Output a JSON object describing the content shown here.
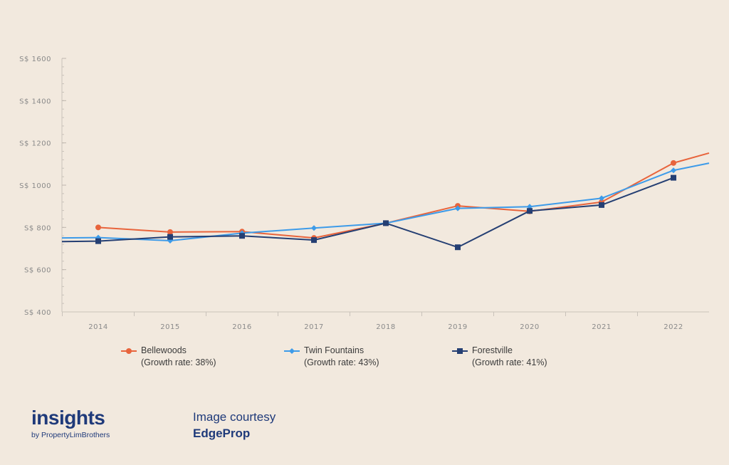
{
  "chart_data": {
    "type": "line",
    "categories": [
      "2014",
      "2015",
      "2016",
      "2017",
      "2018",
      "2019",
      "2020",
      "2021",
      "2022"
    ],
    "ylim": [
      400,
      1600
    ],
    "yticks": [
      400,
      600,
      800,
      1000,
      1200,
      1400,
      1600
    ],
    "ytick_labels": [
      "S$ 400",
      "S$ 600",
      "S$ 800",
      "S$ 1000",
      "S$ 1200",
      "S$ 1400",
      "S$ 1600"
    ],
    "grid": false,
    "legend_position": "bottom",
    "series": [
      {
        "name": "Bellewoods",
        "note": "(Growth rate: 38%)",
        "color": "#e8643c",
        "marker": "circle",
        "values": [
          800,
          778,
          780,
          750,
          820,
          902,
          876,
          920,
          1105
        ],
        "extend_right": 1152
      },
      {
        "name": "Twin Fountains",
        "note": "(Growth rate: 43%)",
        "color": "#3d9be9",
        "marker": "diamond",
        "values": [
          752,
          737,
          773,
          797,
          820,
          890,
          898,
          938,
          1070
        ],
        "extend_left": 750,
        "extend_right": 1104
      },
      {
        "name": "Forestville",
        "note": "(Growth rate: 41%)",
        "color": "#253f73",
        "marker": "square",
        "values": [
          735,
          755,
          760,
          740,
          820,
          706,
          878,
          906,
          1035
        ],
        "extend_left": 733
      }
    ]
  },
  "brand": {
    "name": "insights",
    "by": "by PropertyLimBrothers"
  },
  "courtesy": {
    "line1": "Image courtesy",
    "line2": "EdgeProp"
  }
}
